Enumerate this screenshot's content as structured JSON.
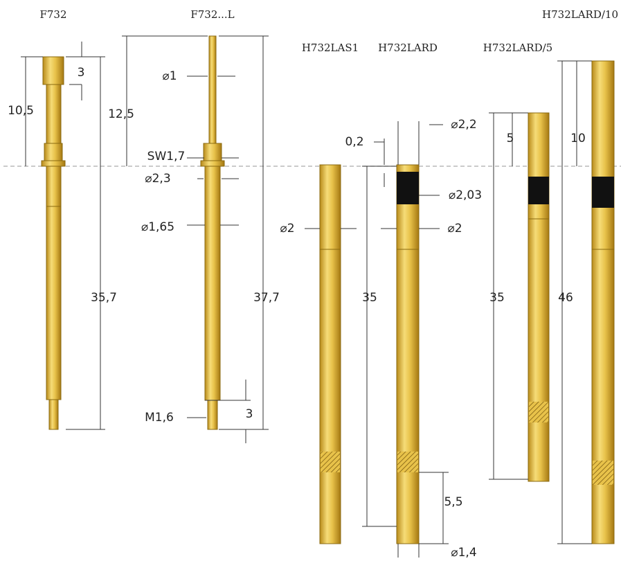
{
  "products": [
    {
      "name": "F732",
      "dimensions": [
        "3",
        "10,5",
        "35,7"
      ]
    },
    {
      "name": "F732...L",
      "dimensions": [
        "⌀1",
        "12,5",
        "SW1,7",
        "⌀2,3",
        "⌀1,65",
        "37,7",
        "M1,6",
        "3"
      ]
    },
    {
      "name": "H732LAS1",
      "dimensions": [
        "⌀2",
        "35"
      ]
    },
    {
      "name": "H732LARD",
      "dimensions": [
        "0,2",
        "⌀2,2",
        "⌀2,03",
        "⌀2",
        "5,5",
        "⌀1,4"
      ]
    },
    {
      "name": "H732LARD/5",
      "dimensions": [
        "5",
        "35"
      ]
    },
    {
      "name": "H732LARD/10",
      "dimensions": [
        "10",
        "46"
      ]
    }
  ]
}
